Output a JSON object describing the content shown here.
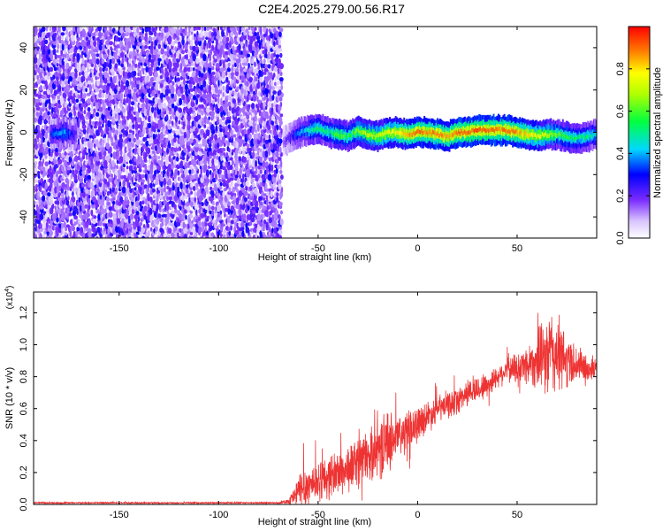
{
  "page_title": "C2E4.2025.279.00.56.R17",
  "colors": {
    "snr_line": "#ee3333",
    "spectrogram_background_dots": "#8a2be2"
  },
  "chart_data": [
    {
      "type": "heatmap",
      "title": "C2E4.2025.279.00.56.R17",
      "xlabel": "Height of straight line (km)",
      "ylabel": "Frequency (Hz)",
      "xlim": [
        -193,
        90
      ],
      "ylim": [
        -50,
        50
      ],
      "x_ticks": [
        -150,
        -100,
        -50,
        0,
        50
      ],
      "y_ticks": [
        -40,
        -20,
        0,
        20,
        40
      ],
      "grid": false,
      "noise_region_x": [
        -193,
        -68
      ],
      "ridge": {
        "x": [
          -193,
          -185,
          -178,
          -172,
          -168,
          -68,
          -62,
          -55,
          -50,
          -45,
          -40,
          -35,
          -30,
          -25,
          -20,
          -15,
          -10,
          -5,
          0,
          5,
          10,
          15,
          20,
          25,
          30,
          35,
          40,
          45,
          50,
          55,
          60,
          65,
          70,
          75,
          80,
          85,
          90
        ],
        "frequency_hz": [
          null,
          -1,
          0,
          -1,
          null,
          -5,
          -1,
          1,
          2,
          0,
          -1,
          -2,
          1,
          -1,
          -2,
          0,
          0,
          -1,
          0,
          0,
          -1,
          -2,
          0,
          0,
          1,
          1,
          1,
          1,
          0,
          -1,
          -2,
          -1,
          -1,
          -2,
          -3,
          -2,
          -1
        ],
        "normalized_amplitude": [
          null,
          0.3,
          0.4,
          0.25,
          null,
          0.15,
          0.3,
          0.45,
          0.55,
          0.5,
          0.6,
          0.55,
          0.65,
          0.7,
          0.7,
          0.75,
          0.8,
          0.85,
          0.9,
          0.85,
          0.9,
          0.85,
          0.9,
          0.9,
          0.92,
          0.9,
          0.88,
          0.9,
          0.85,
          0.8,
          0.75,
          0.7,
          0.6,
          0.55,
          0.5,
          0.5,
          0.45
        ]
      },
      "colorbar": {
        "label": "Normalized spectral amplitude",
        "range": [
          0.0,
          1.0
        ],
        "ticks": [
          "0.0",
          "0.2",
          "0.4",
          "0.6",
          "0.8"
        ]
      }
    },
    {
      "type": "line",
      "xlabel": "Height of straight line (km)",
      "ylabel": "SNR (10 * v/v)",
      "scale_label_base": "(x10",
      "scale_label_exp": "4",
      "scale_label_close": ")",
      "xlim": [
        -193,
        90
      ],
      "ylim": [
        0,
        1.33
      ],
      "x_ticks": [
        -150,
        -100,
        -50,
        0,
        50
      ],
      "y_ticks": [
        "0.0",
        "0.2",
        "0.4",
        "0.6",
        "0.8",
        "1.0",
        "1.2"
      ],
      "grid": false,
      "series": [
        {
          "x": [
            -193,
            -150,
            -100,
            -70,
            -65,
            -62,
            -58,
            -55,
            -50,
            -45,
            -40,
            -35,
            -30,
            -25,
            -20,
            -15,
            -10,
            -5,
            0,
            5,
            10,
            15,
            20,
            25,
            30,
            35,
            40,
            45,
            50,
            55,
            60,
            65,
            68,
            70,
            75,
            80,
            85,
            90
          ],
          "mean": [
            0.01,
            0.01,
            0.01,
            0.01,
            0.02,
            0.05,
            0.1,
            0.12,
            0.15,
            0.17,
            0.2,
            0.22,
            0.28,
            0.3,
            0.35,
            0.4,
            0.42,
            0.46,
            0.52,
            0.55,
            0.6,
            0.62,
            0.65,
            0.7,
            0.72,
            0.75,
            0.8,
            0.85,
            0.85,
            0.88,
            0.9,
            0.92,
            0.95,
            0.93,
            0.9,
            0.88,
            0.85,
            0.85
          ],
          "spread": [
            0.005,
            0.005,
            0.005,
            0.005,
            0.02,
            0.08,
            0.18,
            0.15,
            0.15,
            0.16,
            0.17,
            0.18,
            0.18,
            0.18,
            0.2,
            0.22,
            0.18,
            0.15,
            0.12,
            0.12,
            0.1,
            0.1,
            0.1,
            0.1,
            0.1,
            0.1,
            0.08,
            0.1,
            0.12,
            0.15,
            0.2,
            0.3,
            0.35,
            0.3,
            0.2,
            0.15,
            0.1,
            0.08
          ]
        }
      ]
    }
  ]
}
